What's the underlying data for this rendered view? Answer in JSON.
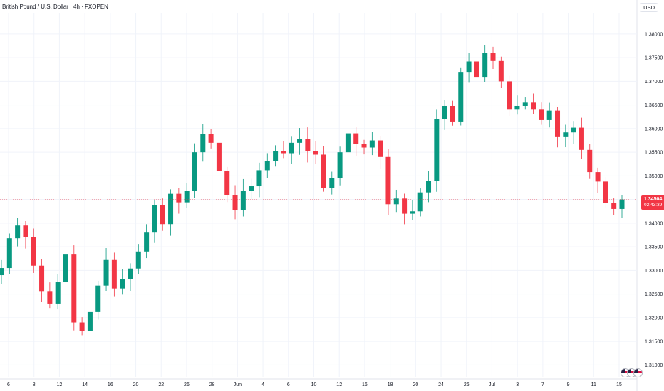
{
  "header": {
    "title": "British Pound / U.S. Dollar · 4h · FXOPEN",
    "currency": "USD"
  },
  "last_price": {
    "value": "1.34504",
    "countdown": "02:43:39",
    "up_color": "#089981",
    "down_color": "#f23645"
  },
  "event_icons": [
    "us-flag-icon",
    "gb-flag-icon",
    "us-flag-icon"
  ],
  "chart_data": {
    "type": "candlestick",
    "title": "British Pound / U.S. Dollar · 4h · FXOPEN",
    "ylabel": "USD",
    "ylim": [
      1.3075,
      1.3845
    ],
    "y_ticks": [
      "1.38000",
      "1.37500",
      "1.37000",
      "1.36500",
      "1.36000",
      "1.35500",
      "1.35000",
      "1.34500",
      "1.34000",
      "1.33500",
      "1.33000",
      "1.32500",
      "1.32000",
      "1.31500",
      "1.31000"
    ],
    "x_ticks": [
      "6",
      "8",
      "12",
      "14",
      "16",
      "20",
      "22",
      "26",
      "28",
      "Jun",
      "4",
      "6",
      "10",
      "12",
      "16",
      "18",
      "20",
      "24",
      "26",
      "Jul",
      "3",
      "7",
      "9",
      "11",
      "15"
    ],
    "grid": true,
    "series": [
      {
        "date_label": "6",
        "closes": [
          1.3305,
          1.3368,
          1.3395
        ]
      },
      {
        "date_label": "8",
        "closes": [
          1.337,
          1.331,
          1.3255
        ]
      },
      {
        "date_label": "12",
        "closes": [
          1.323,
          1.3275,
          1.3335,
          1.319,
          1.3172
        ]
      },
      {
        "date_label": "14",
        "closes": [
          1.3212,
          1.3268,
          1.3322
        ]
      },
      {
        "date_label": "16",
        "closes": [
          1.3262,
          1.3282,
          1.3304
        ]
      },
      {
        "date_label": "20",
        "closes": [
          1.334,
          1.338,
          1.3438,
          1.3398
        ]
      },
      {
        "date_label": "22",
        "closes": [
          1.3462,
          1.3444,
          1.3468
        ]
      },
      {
        "date_label": "26",
        "closes": [
          1.355,
          1.3588,
          1.357
        ]
      },
      {
        "date_label": "28",
        "closes": [
          1.351,
          1.346,
          1.3428
        ]
      },
      {
        "date_label": "Jun",
        "closes": [
          1.3468,
          1.3478,
          1.3512
        ]
      },
      {
        "date_label": "4",
        "closes": [
          1.3532,
          1.3552,
          1.3548
        ]
      },
      {
        "date_label": "6",
        "closes": [
          1.357,
          1.3578,
          1.3552
        ]
      },
      {
        "date_label": "10",
        "closes": [
          1.3545,
          1.3475,
          1.3495
        ]
      },
      {
        "date_label": "12",
        "closes": [
          1.355,
          1.359,
          1.3568
        ]
      },
      {
        "date_label": "16",
        "closes": [
          1.356,
          1.3575,
          1.354
        ]
      },
      {
        "date_label": "18",
        "closes": [
          1.344,
          1.3452,
          1.342
        ]
      },
      {
        "date_label": "20",
        "closes": [
          1.3425,
          1.3465,
          1.349
        ]
      },
      {
        "date_label": "24",
        "closes": [
          1.362,
          1.3648,
          1.3615
        ]
      },
      {
        "date_label": "26",
        "closes": [
          1.372,
          1.3742,
          1.3708
        ]
      },
      {
        "date_label": "Jul",
        "closes": [
          1.376,
          1.3743,
          1.37
        ]
      },
      {
        "date_label": "3",
        "closes": [
          1.364,
          1.3648,
          1.3655
        ]
      },
      {
        "date_label": "7",
        "closes": [
          1.364,
          1.3618,
          1.3638
        ]
      },
      {
        "date_label": "9",
        "closes": [
          1.3582,
          1.3592,
          1.3602
        ]
      },
      {
        "date_label": "11",
        "closes": [
          1.3555,
          1.3508,
          1.3488
        ]
      },
      {
        "date_label": "15",
        "closes": [
          1.3442,
          1.343,
          1.345
        ]
      }
    ]
  }
}
